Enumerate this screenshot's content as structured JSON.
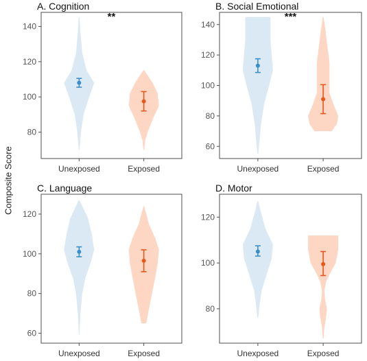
{
  "figure": {
    "ylabel": "Composite Score"
  },
  "colors": {
    "unexposed_fill": "#dbe9f4",
    "unexposed_point": "#3b8fc9",
    "exposed_fill": "#fdd6c4",
    "exposed_point": "#e8571c",
    "frame": "#4d4d4d",
    "tick_text": "#555555"
  },
  "chart_data": [
    {
      "type": "violin",
      "title": "A. Cognition",
      "significance": "**",
      "categories": [
        "Unexposed",
        "Exposed"
      ],
      "ylim": [
        65,
        148
      ],
      "yticks": [
        80,
        100,
        120,
        140
      ],
      "series": [
        {
          "name": "Unexposed",
          "mean": 108,
          "ci_low": 105.5,
          "ci_high": 110.5,
          "density": [
            [
              70,
              0.3
            ],
            [
              80,
              1.5
            ],
            [
              90,
              3.5
            ],
            [
              100,
              8
            ],
            [
              108,
              12
            ],
            [
              115,
              6
            ],
            [
              125,
              2.5
            ],
            [
              135,
              1.2
            ],
            [
              145,
              0.3
            ]
          ]
        },
        {
          "name": "Exposed",
          "mean": 97.5,
          "ci_low": 92,
          "ci_high": 103,
          "density": [
            [
              70,
              0.3
            ],
            [
              75,
              1
            ],
            [
              80,
              3
            ],
            [
              88,
              7.5
            ],
            [
              95,
              12
            ],
            [
              102,
              11
            ],
            [
              108,
              7
            ],
            [
              115,
              0.5
            ]
          ]
        }
      ]
    },
    {
      "type": "violin",
      "title": "B. Social Emotional",
      "significance": "***",
      "categories": [
        "Unexposed",
        "Exposed"
      ],
      "ylim": [
        52,
        148
      ],
      "yticks": [
        60,
        80,
        100,
        120,
        140
      ],
      "series": [
        {
          "name": "Unexposed",
          "mean": 113,
          "ci_low": 108.5,
          "ci_high": 117.5,
          "density": [
            [
              55,
              0.3
            ],
            [
              65,
              1.5
            ],
            [
              75,
              2.5
            ],
            [
              88,
              5
            ],
            [
              100,
              9
            ],
            [
              110,
              12
            ],
            [
              120,
              11
            ],
            [
              130,
              10
            ],
            [
              140,
              10
            ],
            [
              145,
              10
            ]
          ]
        },
        {
          "name": "Exposed",
          "mean": 91,
          "ci_low": 81.5,
          "ci_high": 100.5,
          "density": [
            [
              70,
              7
            ],
            [
              75,
              11
            ],
            [
              80,
              12
            ],
            [
              88,
              8
            ],
            [
              95,
              5
            ],
            [
              105,
              5
            ],
            [
              115,
              5
            ],
            [
              125,
              3.5
            ],
            [
              135,
              2
            ],
            [
              145,
              0.3
            ]
          ]
        }
      ]
    },
    {
      "type": "violin",
      "title": "C. Language",
      "significance": "",
      "categories": [
        "Unexposed",
        "Exposed"
      ],
      "ylim": [
        55,
        130
      ],
      "yticks": [
        60,
        80,
        100,
        120
      ],
      "series": [
        {
          "name": "Unexposed",
          "mean": 101,
          "ci_low": 98.5,
          "ci_high": 103.5,
          "density": [
            [
              59,
              0.2
            ],
            [
              70,
              1
            ],
            [
              80,
              2.5
            ],
            [
              88,
              5
            ],
            [
              95,
              9
            ],
            [
              102,
              12
            ],
            [
              110,
              10
            ],
            [
              118,
              7
            ],
            [
              127,
              0.3
            ]
          ]
        },
        {
          "name": "Exposed",
          "mean": 96.5,
          "ci_low": 91,
          "ci_high": 102,
          "density": [
            [
              65,
              2
            ],
            [
              72,
              4
            ],
            [
              80,
              6.5
            ],
            [
              88,
              9
            ],
            [
              95,
              11
            ],
            [
              102,
              12
            ],
            [
              108,
              9
            ],
            [
              115,
              4
            ],
            [
              124,
              0.3
            ]
          ]
        }
      ]
    },
    {
      "type": "violin",
      "title": "D. Motor",
      "significance": "",
      "categories": [
        "Unexposed",
        "Exposed"
      ],
      "ylim": [
        65,
        130
      ],
      "yticks": [
        80,
        100,
        120
      ],
      "series": [
        {
          "name": "Unexposed",
          "mean": 105,
          "ci_low": 103,
          "ci_high": 107.5,
          "density": [
            [
              76,
              0.3
            ],
            [
              82,
              1.5
            ],
            [
              88,
              3
            ],
            [
              95,
              7
            ],
            [
              102,
              11
            ],
            [
              108,
              12
            ],
            [
              115,
              6
            ],
            [
              122,
              2.5
            ],
            [
              127,
              0.3
            ]
          ]
        },
        {
          "name": "Exposed",
          "mean": 99.5,
          "ci_low": 94.5,
          "ci_high": 105,
          "density": [
            [
              67,
              0.3
            ],
            [
              72,
              1
            ],
            [
              77,
              2.5
            ],
            [
              80,
              3
            ],
            [
              84,
              1.5
            ],
            [
              88,
              1
            ],
            [
              92,
              2.5
            ],
            [
              95,
              5
            ],
            [
              100,
              10
            ],
            [
              106,
              12
            ],
            [
              112,
              12
            ]
          ]
        }
      ]
    }
  ]
}
